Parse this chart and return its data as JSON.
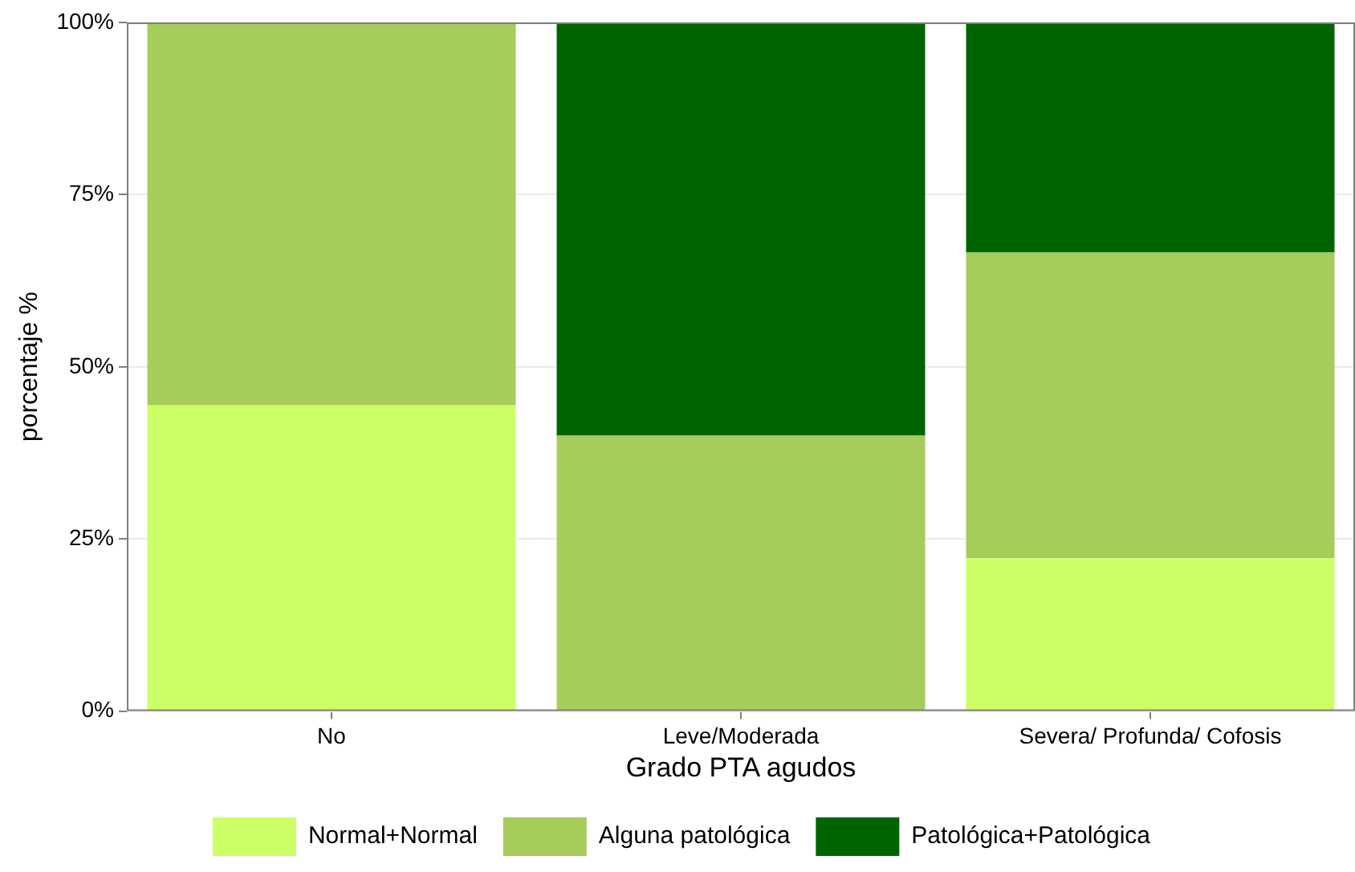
{
  "chart_data": {
    "type": "bar",
    "stacked": true,
    "xlabel": "Grado PTA agudos",
    "ylabel": "porcentaje %",
    "categories": [
      "No",
      "Leve/Moderada",
      "Severa/ Profunda/ Cofosis"
    ],
    "series": [
      {
        "name": "Normal+Normal",
        "color": "#ccff66",
        "values": [
          44.4,
          0,
          22.2
        ]
      },
      {
        "name": "Alguna patológica",
        "color": "#a6cc5c",
        "values": [
          55.6,
          40,
          44.4
        ]
      },
      {
        "name": "Patológica+Patológica",
        "color": "#006400",
        "values": [
          0,
          60,
          33.3
        ]
      }
    ],
    "ylim": [
      0,
      100
    ],
    "yticks": [
      {
        "value": 0,
        "label": "0%"
      },
      {
        "value": 25,
        "label": "25%"
      },
      {
        "value": 50,
        "label": "50%"
      },
      {
        "value": 75,
        "label": "75%"
      },
      {
        "value": 100,
        "label": "100%"
      }
    ],
    "grid": true,
    "legend": "bottom"
  }
}
